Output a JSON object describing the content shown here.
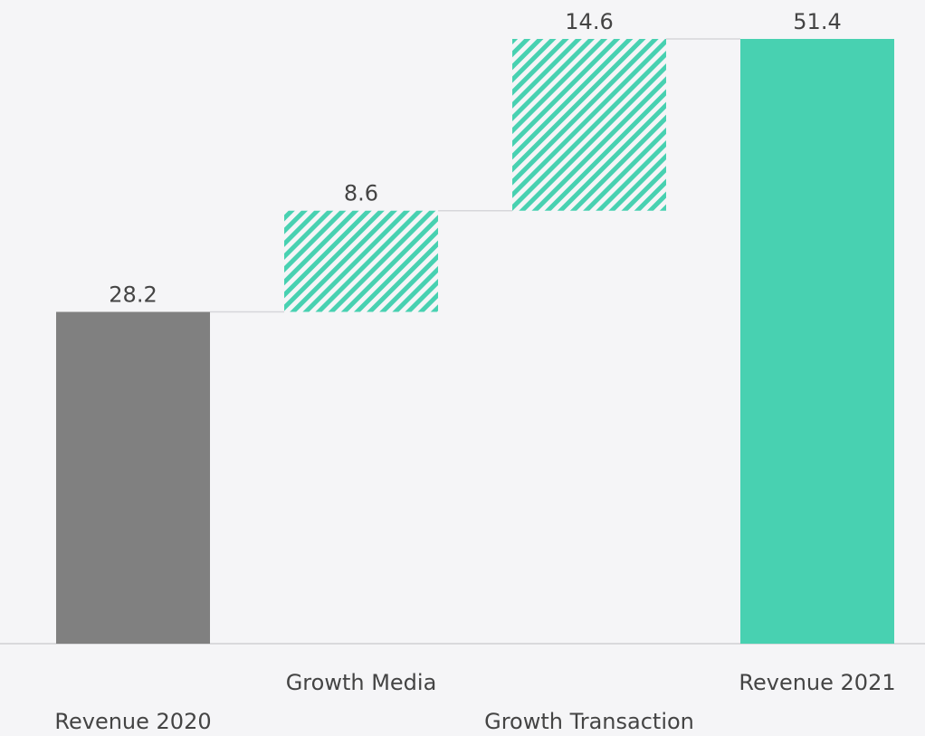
{
  "chart_data": {
    "type": "waterfall",
    "categories": [
      "Revenue 2020",
      "Growth Media",
      "Growth Transaction",
      "Revenue 2021"
    ],
    "values": [
      28.2,
      8.6,
      14.6,
      51.4
    ],
    "measure": [
      "total",
      "relative",
      "relative",
      "total"
    ],
    "colors": [
      "#808080",
      "#48d1b1",
      "#48d1b1",
      "#48d1b1"
    ],
    "ylim": [
      0,
      51.4
    ]
  }
}
